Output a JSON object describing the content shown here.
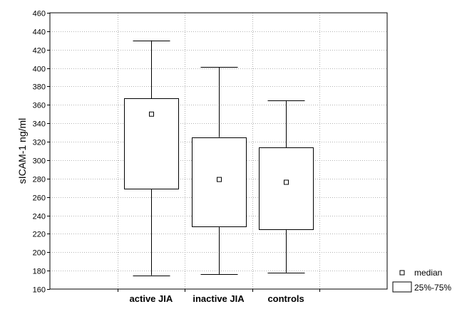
{
  "chart_data": {
    "type": "box",
    "ylabel": "sICAM-1 ng/ml",
    "xlabel": "",
    "ylim": [
      160,
      460
    ],
    "yticks": [
      160,
      180,
      200,
      220,
      240,
      260,
      280,
      300,
      320,
      340,
      360,
      380,
      400,
      420,
      440,
      460
    ],
    "grid": true,
    "categories": [
      "active JIA",
      "inactive JIA",
      "controls"
    ],
    "boxes": [
      {
        "category": "active JIA",
        "min": 175,
        "q1": 269,
        "median": 350,
        "q3": 367,
        "max": 430
      },
      {
        "category": "inactive JIA",
        "min": 176,
        "q1": 228,
        "median": 279,
        "q3": 325,
        "max": 401
      },
      {
        "category": "controls",
        "min": 178,
        "q1": 225,
        "median": 276,
        "q3": 314,
        "max": 365
      }
    ],
    "legend": {
      "placement": "bottom-right",
      "entries": [
        {
          "symbol": "square-marker",
          "label": "median"
        },
        {
          "symbol": "box",
          "label": "25%-75%"
        }
      ]
    },
    "colors": {
      "stroke": "#000000",
      "box_fill": "#ffffff",
      "grid": "#9a9a9a"
    }
  }
}
